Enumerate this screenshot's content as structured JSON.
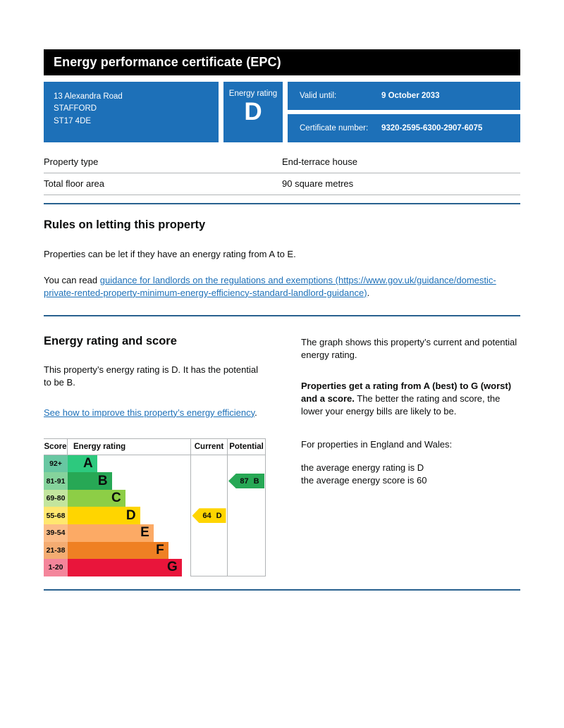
{
  "page": {
    "title": "Energy performance certificate (EPC)"
  },
  "summary": {
    "address_line1": "13 Alexandra Road",
    "address_line2": "STAFFORD",
    "address_line3": "ST17 4DE",
    "energy_rating_label": "Energy rating",
    "energy_rating": "D",
    "valid_until_label": "Valid until:",
    "valid_until_value": "9 October 2033",
    "certificate_number_label": "Certificate number:",
    "certificate_number_value": "9320-2595-6300-2907-6075"
  },
  "property_facts": {
    "rows": [
      {
        "label": "Property type",
        "value": "End-terrace house"
      },
      {
        "label": "Total floor area",
        "value": "90 square metres"
      }
    ]
  },
  "rules_section": {
    "heading": "Rules on letting this property",
    "paragraph1": "Properties can be let if they have an energy rating from A to E.",
    "paragraph2_prefix": "You can read ",
    "link_text": "guidance for landlords on the regulations and exemptions (https://www.gov.uk/guidance/domestic-private-rented-property-minimum-energy-efficiency-standard-landlord-guidance)",
    "paragraph2_suffix": "."
  },
  "rating_section": {
    "heading": "Energy rating and score",
    "paragraph1": "This property’s energy rating is D. It has the potential to be B.",
    "link_text": "See how to improve this property’s energy efficiency",
    "link_suffix": "."
  },
  "explainer": {
    "paragraph1": "The graph shows this property’s current and potential energy rating.",
    "bold_lead": "Properties get a rating from A (best) to G (worst) and a score.",
    "paragraph2_rest": " The better the rating and score, the lower your energy bills are likely to be.",
    "paragraph3": "For properties in England and Wales:",
    "average_rating_line": "the average energy rating is D",
    "average_score_line": "the average energy score is 60"
  },
  "chart_data": {
    "type": "bar",
    "title": "EPC energy rating and score graph",
    "headers": {
      "score": "Score",
      "rating": "Energy rating",
      "current": "Current",
      "potential": "Potential"
    },
    "bands": [
      {
        "score_range": "92+",
        "letter": "A",
        "color": "#2dc97e",
        "tint": "#68c7a2",
        "width_pct": 24
      },
      {
        "score_range": "81-91",
        "letter": "B",
        "color": "#27a855",
        "tint": "#85d39c",
        "width_pct": 36
      },
      {
        "score_range": "69-80",
        "letter": "C",
        "color": "#8dce46",
        "tint": "#c3e59e",
        "width_pct": 47
      },
      {
        "score_range": "55-68",
        "letter": "D",
        "color": "#ffd500",
        "tint": "#ffe76f",
        "width_pct": 59
      },
      {
        "score_range": "39-54",
        "letter": "E",
        "color": "#fcaa65",
        "tint": "#fbbc88",
        "width_pct": 70
      },
      {
        "score_range": "21-38",
        "letter": "F",
        "color": "#ef8023",
        "tint": "#f4ac72",
        "width_pct": 82
      },
      {
        "score_range": "1-20",
        "letter": "G",
        "color": "#e9153b",
        "tint": "#f4859b",
        "width_pct": 93
      }
    ],
    "current": {
      "score": "64",
      "letter": "D",
      "band_index": 3,
      "color": "#ffd500"
    },
    "potential": {
      "score": "87",
      "letter": "B",
      "band_index": 1,
      "color": "#27a855"
    }
  },
  "colors": {
    "brand_blue": "#1d70b8",
    "header_bg": "#000000",
    "divider_blue": "#29618f",
    "border_gray": "#b1b4b6",
    "text": "#0b0c0c",
    "link": "#1d70b8"
  }
}
